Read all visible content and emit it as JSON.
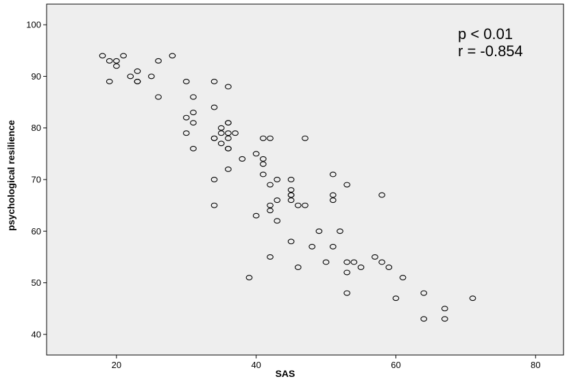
{
  "chart_data": {
    "type": "scatter",
    "xlabel": "SAS",
    "ylabel": "psychological resilience",
    "xlim": [
      10,
      84
    ],
    "ylim": [
      36,
      104
    ],
    "xticks": [
      20,
      40,
      60,
      80
    ],
    "yticks": [
      40,
      50,
      60,
      70,
      80,
      90,
      100
    ],
    "grid": false,
    "background": "#eeeeee",
    "marker_color": "#000000",
    "annotations": [
      "p < 0.01",
      "r = -0.854"
    ],
    "series": [
      {
        "x": [
          18,
          19,
          20,
          20,
          21,
          19,
          22,
          23,
          23,
          23,
          25,
          26,
          28,
          26,
          30,
          30,
          30,
          31,
          31,
          31,
          31,
          34,
          34,
          34,
          34,
          34,
          34,
          35,
          35,
          35,
          36,
          36,
          36,
          36,
          36,
          36,
          36,
          37,
          36,
          38,
          40,
          41,
          41,
          41,
          42,
          41,
          42,
          42,
          42,
          43,
          43,
          43,
          40,
          45,
          45,
          45,
          45,
          45,
          45,
          46,
          47,
          47,
          42,
          46,
          49,
          48,
          50,
          51,
          51,
          51,
          51,
          52,
          53,
          53,
          53,
          53,
          54,
          55,
          57,
          58,
          59,
          58,
          61,
          60,
          64,
          64,
          67,
          67,
          71,
          39
        ],
        "y": [
          94,
          93,
          93,
          92,
          94,
          89,
          90,
          91,
          89,
          89,
          90,
          93,
          94,
          86,
          89,
          82,
          79,
          86,
          83,
          81,
          76,
          89,
          84,
          78,
          78,
          70,
          65,
          79,
          77,
          80,
          88,
          81,
          81,
          79,
          78,
          76,
          76,
          79,
          72,
          74,
          75,
          74,
          73,
          71,
          69,
          78,
          78,
          65,
          64,
          70,
          66,
          62,
          63,
          70,
          68,
          67,
          66,
          67,
          58,
          65,
          65,
          78,
          55,
          53,
          60,
          57,
          54,
          71,
          67,
          66,
          57,
          60,
          69,
          54,
          52,
          48,
          54,
          53,
          55,
          54,
          53,
          67,
          51,
          47,
          48,
          43,
          45,
          43,
          47,
          51
        ]
      }
    ]
  }
}
